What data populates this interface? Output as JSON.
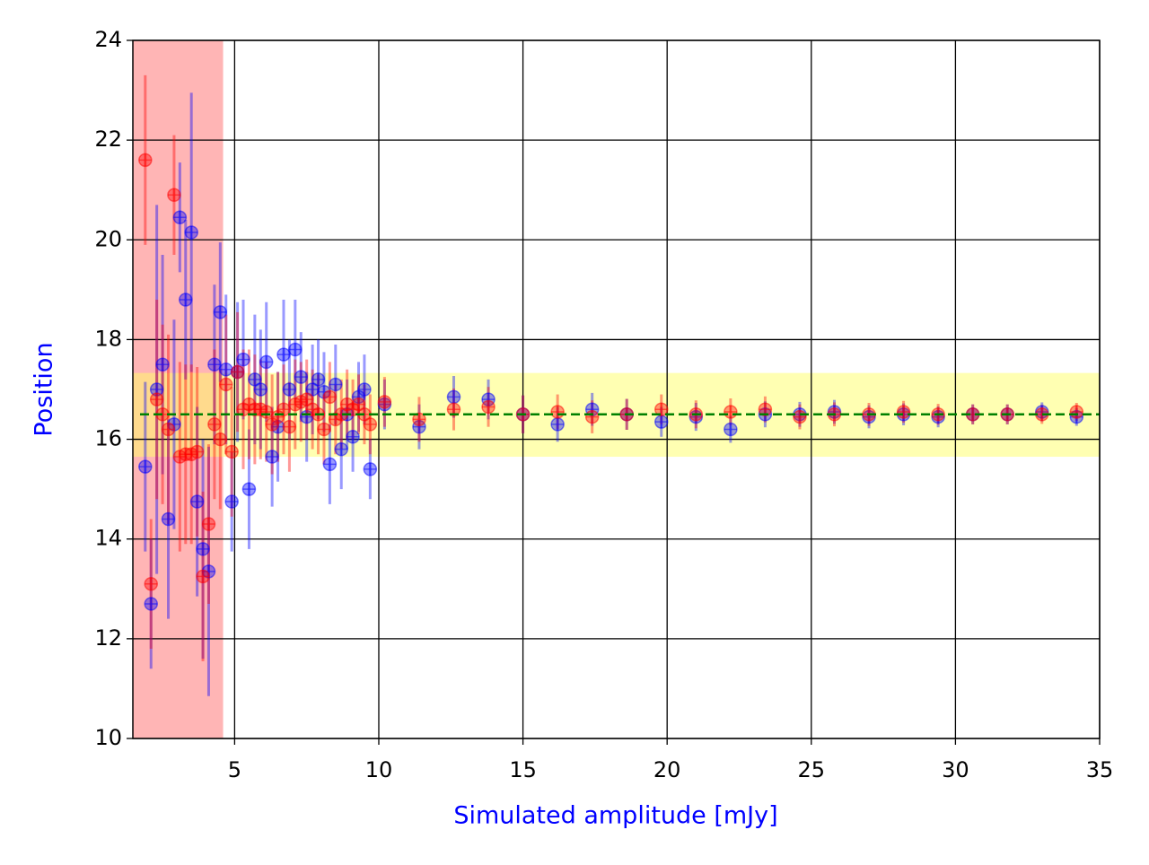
{
  "chart_data": {
    "type": "errorbar_scatter",
    "xlabel": "Simulated amplitude [mJy]",
    "ylabel": "Position",
    "label_color": "#0000ff",
    "xlim": [
      1.47,
      35
    ],
    "ylim": [
      10,
      24
    ],
    "xticks": [
      5,
      10,
      15,
      20,
      25,
      30,
      35
    ],
    "yticks": [
      10,
      12,
      14,
      16,
      18,
      20,
      22,
      24
    ],
    "grid": true,
    "xspan": {
      "xmin": 1.47,
      "xmax": 4.6,
      "color": "#ff6b6b"
    },
    "yspan": {
      "ymin": 15.65,
      "ymax": 17.33,
      "color": "#ffff66"
    },
    "hline": {
      "y": 16.5,
      "color": "#008000"
    },
    "x": [
      1.9,
      2.1,
      2.3,
      2.5,
      2.7,
      2.9,
      3.1,
      3.3,
      3.5,
      3.7,
      3.9,
      4.1,
      4.3,
      4.5,
      4.7,
      4.9,
      5.1,
      5.3,
      5.5,
      5.7,
      5.9,
      6.1,
      6.3,
      6.5,
      6.7,
      6.9,
      7.1,
      7.3,
      7.5,
      7.7,
      7.9,
      8.1,
      8.3,
      8.5,
      8.7,
      8.9,
      9.1,
      9.3,
      9.5,
      9.7,
      10.2,
      11.4,
      12.6,
      13.8,
      15.0,
      16.2,
      17.4,
      18.6,
      19.8,
      21.0,
      22.2,
      23.4,
      24.6,
      25.8,
      27.0,
      28.2,
      29.4,
      30.6,
      31.8,
      33.0,
      34.2
    ],
    "series": [
      {
        "color": "#0000ff",
        "values": [
          15.45,
          12.7,
          17.0,
          17.5,
          14.4,
          16.3,
          20.45,
          18.8,
          20.15,
          14.75,
          13.8,
          13.35,
          17.5,
          18.55,
          17.4,
          14.75,
          17.35,
          17.6,
          15.0,
          17.2,
          17.0,
          17.55,
          15.65,
          16.25,
          17.7,
          17.0,
          17.8,
          17.25,
          16.45,
          17.0,
          17.2,
          16.95,
          15.5,
          17.1,
          15.8,
          16.5,
          16.05,
          16.85,
          17.0,
          15.4,
          16.7,
          16.25,
          16.85,
          16.8,
          16.5,
          16.3,
          16.6,
          16.5,
          16.35,
          16.45,
          16.2,
          16.5,
          16.5,
          16.55,
          16.45,
          16.5,
          16.45,
          16.5,
          16.5,
          16.55,
          16.45
        ],
        "errors": [
          1.7,
          1.3,
          3.7,
          2.2,
          2.0,
          2.1,
          1.1,
          1.6,
          2.8,
          1.9,
          2.2,
          2.5,
          1.6,
          1.4,
          1.5,
          1.0,
          1.4,
          1.2,
          1.2,
          1.3,
          1.2,
          1.2,
          1.0,
          1.1,
          1.1,
          1.0,
          1.0,
          0.9,
          0.9,
          0.9,
          0.8,
          0.8,
          0.8,
          0.8,
          0.8,
          0.7,
          0.7,
          0.7,
          0.7,
          0.6,
          0.5,
          0.45,
          0.42,
          0.4,
          0.38,
          0.35,
          0.33,
          0.31,
          0.3,
          0.28,
          0.27,
          0.26,
          0.25,
          0.24,
          0.23,
          0.22,
          0.21,
          0.2,
          0.2,
          0.19,
          0.18
        ]
      },
      {
        "color": "#ff0000",
        "values": [
          21.6,
          13.1,
          16.8,
          16.5,
          16.2,
          20.9,
          15.65,
          15.7,
          15.7,
          15.75,
          13.25,
          14.3,
          16.3,
          16.0,
          17.1,
          15.75,
          17.35,
          16.6,
          16.7,
          16.6,
          16.6,
          16.55,
          16.3,
          16.45,
          16.6,
          16.25,
          16.7,
          16.75,
          16.8,
          16.6,
          16.5,
          16.2,
          16.85,
          16.4,
          16.5,
          16.7,
          16.6,
          16.7,
          16.5,
          16.3,
          16.75,
          16.4,
          16.6,
          16.65,
          16.5,
          16.55,
          16.45,
          16.5,
          16.6,
          16.5,
          16.55,
          16.6,
          16.45,
          16.5,
          16.5,
          16.55,
          16.5,
          16.5,
          16.5,
          16.5,
          16.55
        ],
        "errors": [
          1.7,
          1.3,
          2.0,
          1.8,
          1.9,
          1.2,
          1.9,
          1.8,
          1.8,
          1.7,
          1.7,
          1.6,
          1.5,
          1.4,
          1.4,
          1.3,
          1.2,
          1.2,
          1.1,
          1.1,
          1.0,
          1.0,
          1.0,
          0.9,
          0.9,
          0.9,
          0.9,
          0.8,
          0.8,
          0.8,
          0.8,
          0.7,
          0.7,
          0.7,
          0.7,
          0.7,
          0.6,
          0.6,
          0.6,
          0.6,
          0.5,
          0.45,
          0.42,
          0.4,
          0.38,
          0.35,
          0.33,
          0.31,
          0.3,
          0.28,
          0.27,
          0.26,
          0.25,
          0.24,
          0.23,
          0.22,
          0.21,
          0.2,
          0.2,
          0.19,
          0.18
        ]
      }
    ]
  }
}
